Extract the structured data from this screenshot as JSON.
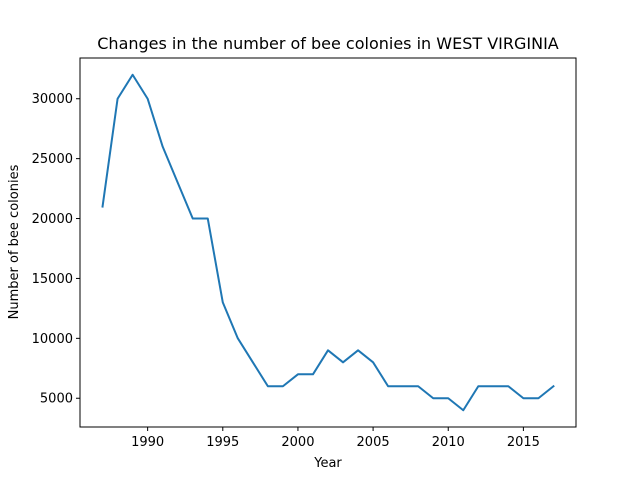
{
  "chart_data": {
    "type": "line",
    "title": "Changes in the number of bee colonies in WEST VIRGINIA",
    "xlabel": "Year",
    "ylabel": "Number of bee colonies",
    "xlim": [
      1985.5,
      2018.5
    ],
    "ylim": [
      2600,
      33400
    ],
    "xticks": [
      1990,
      1995,
      2000,
      2005,
      2010,
      2015
    ],
    "yticks": [
      5000,
      10000,
      15000,
      20000,
      25000,
      30000
    ],
    "grid": false,
    "series": [
      {
        "color": "#1f77b4",
        "x": [
          1987,
          1988,
          1989,
          1990,
          1991,
          1992,
          1993,
          1994,
          1995,
          1996,
          1997,
          1998,
          1999,
          2000,
          2001,
          2002,
          2003,
          2004,
          2005,
          2006,
          2007,
          2008,
          2009,
          2010,
          2011,
          2012,
          2013,
          2014,
          2015,
          2016,
          2017
        ],
        "values": [
          21000,
          30000,
          32000,
          30000,
          26000,
          23000,
          20000,
          20000,
          13000,
          10000,
          8000,
          6000,
          6000,
          7000,
          7000,
          9000,
          8000,
          9000,
          8000,
          6000,
          6000,
          6000,
          5000,
          5000,
          4000,
          6000,
          6000,
          6000,
          5000,
          5000,
          6000
        ]
      }
    ]
  }
}
